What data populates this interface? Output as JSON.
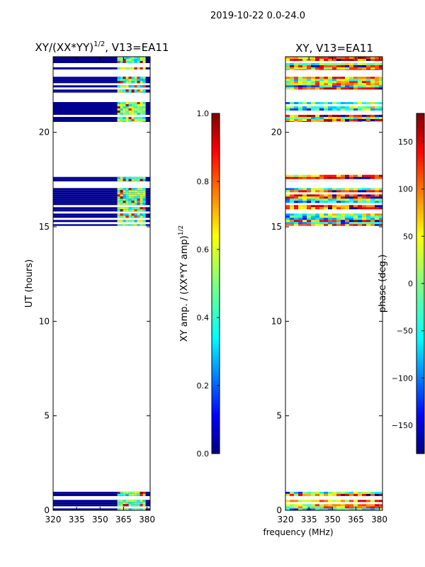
{
  "figure_title": "2019-10-22 0.0-24.0",
  "colors": {
    "background_blue": "#00008f",
    "white": "#ffffff",
    "jet": [
      "#00007f",
      "#0000ff",
      "#007fff",
      "#00ffff",
      "#7fff7f",
      "#ffff00",
      "#ff7f00",
      "#ff0000",
      "#7f0000"
    ]
  },
  "chart_data": [
    {
      "type": "heatmap",
      "title_prefix": "XY/(XX*YY)",
      "title_exp": "1/2",
      "title_suffix": ", V13=EA11",
      "xlabel": "",
      "ylabel": "UT (hours)",
      "xlim": [
        320,
        382
      ],
      "ylim": [
        0,
        24
      ],
      "xticks": [
        "320",
        "335",
        "350",
        "365",
        "380"
      ],
      "xtick_values": [
        320,
        335,
        350,
        365,
        380
      ],
      "yticks": [
        "0",
        "5",
        "10",
        "15",
        "20"
      ],
      "ytick_values": [
        0,
        5,
        10,
        15,
        20
      ],
      "data_bands_hours": [
        [
          0.0,
          0.55
        ],
        [
          0.75,
          0.98
        ],
        [
          15.05,
          17.05
        ],
        [
          17.4,
          17.75
        ],
        [
          20.55,
          21.6
        ],
        [
          22.1,
          23.05
        ],
        [
          23.3,
          24.0
        ]
      ],
      "active_freq_band_mhz": [
        361,
        378
      ],
      "colorbar": {
        "label_prefix": "XY amp. / (XX*YY amp)",
        "label_exp": "1/2",
        "range": [
          0.0,
          1.0
        ],
        "ticks": [
          "0.0",
          "0.2",
          "0.4",
          "0.6",
          "0.8",
          "1.0"
        ],
        "tick_values": [
          0.0,
          0.2,
          0.4,
          0.6,
          0.8,
          1.0
        ]
      }
    },
    {
      "type": "heatmap",
      "title": "XY, V13=EA11",
      "xlabel": "frequency (MHz)",
      "ylabel": "",
      "xlim": [
        320,
        382
      ],
      "ylim": [
        0,
        24
      ],
      "xticks": [
        "320",
        "335",
        "350",
        "365",
        "380"
      ],
      "xtick_values": [
        320,
        335,
        350,
        365,
        380
      ],
      "yticks": [
        "0",
        "5",
        "10",
        "15",
        "20"
      ],
      "ytick_values": [
        0,
        5,
        10,
        15,
        20
      ],
      "data_bands_hours": [
        [
          0.0,
          0.55
        ],
        [
          0.75,
          0.98
        ],
        [
          15.05,
          17.05
        ],
        [
          17.4,
          17.75
        ],
        [
          20.55,
          21.6
        ],
        [
          22.1,
          23.05
        ],
        [
          23.3,
          24.0
        ]
      ],
      "colorbar": {
        "label": "phase (deg.)",
        "range": [
          -180,
          180
        ],
        "ticks": [
          "−150",
          "−100",
          "−50",
          "0",
          "50",
          "100",
          "150"
        ],
        "tick_values": [
          -150,
          -100,
          -50,
          0,
          50,
          100,
          150
        ]
      }
    }
  ]
}
